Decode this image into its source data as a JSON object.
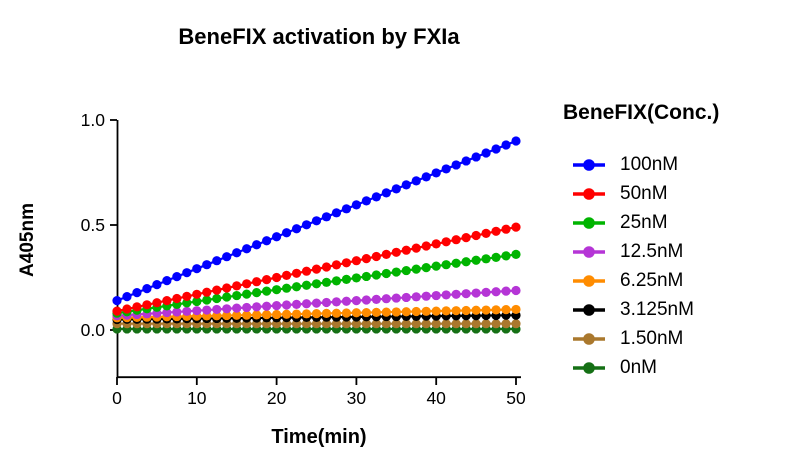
{
  "chart_data": {
    "type": "line",
    "title": "BeneFIX activation by FXIa",
    "xlabel": "Time(min)",
    "ylabel": "A405nm",
    "legend_title": "BeneFIX(Conc.)",
    "legend_position": "right",
    "grid": false,
    "xlim": [
      0,
      50.6
    ],
    "ylim": [
      -0.22,
      1.0
    ],
    "x_ticks": [
      0,
      10,
      20,
      30,
      40,
      50
    ],
    "x_tick_labels": [
      "0",
      "10",
      "20",
      "30",
      "40",
      "50"
    ],
    "y_ticks": [
      0.0,
      0.5,
      1.0
    ],
    "y_tick_labels": [
      "0.0",
      "0.5",
      "1.0"
    ],
    "x": [
      0,
      1.25,
      2.5,
      3.75,
      5,
      6.25,
      7.5,
      8.75,
      10,
      11.25,
      12.5,
      13.75,
      15,
      16.25,
      17.5,
      18.75,
      20,
      21.25,
      22.5,
      23.75,
      25,
      26.25,
      27.5,
      28.75,
      30,
      31.25,
      32.5,
      33.75,
      35,
      36.25,
      37.5,
      38.75,
      40,
      41.25,
      42.5,
      43.75,
      45,
      46.25,
      47.5,
      48.75,
      50
    ],
    "series": [
      {
        "name": "100nM",
        "color": "#0000FF",
        "values": [
          0.14,
          0.159,
          0.178,
          0.197,
          0.216,
          0.235,
          0.254,
          0.273,
          0.292,
          0.311,
          0.33,
          0.349,
          0.368,
          0.387,
          0.406,
          0.425,
          0.444,
          0.463,
          0.482,
          0.501,
          0.52,
          0.539,
          0.558,
          0.577,
          0.596,
          0.615,
          0.634,
          0.653,
          0.672,
          0.691,
          0.71,
          0.729,
          0.748,
          0.767,
          0.786,
          0.805,
          0.824,
          0.843,
          0.862,
          0.881,
          0.9
        ]
      },
      {
        "name": "50nM",
        "color": "#FF0000",
        "values": [
          0.09,
          0.1,
          0.11,
          0.12,
          0.13,
          0.14,
          0.15,
          0.16,
          0.17,
          0.18,
          0.19,
          0.2,
          0.21,
          0.22,
          0.23,
          0.24,
          0.25,
          0.26,
          0.27,
          0.28,
          0.29,
          0.3,
          0.31,
          0.32,
          0.33,
          0.34,
          0.35,
          0.36,
          0.37,
          0.38,
          0.39,
          0.4,
          0.41,
          0.42,
          0.43,
          0.44,
          0.45,
          0.46,
          0.47,
          0.48,
          0.49
        ]
      },
      {
        "name": "25nM",
        "color": "#00B400",
        "values": [
          0.08,
          0.087,
          0.094,
          0.101,
          0.108,
          0.115,
          0.122,
          0.129,
          0.136,
          0.143,
          0.15,
          0.157,
          0.164,
          0.171,
          0.178,
          0.185,
          0.192,
          0.199,
          0.206,
          0.213,
          0.22,
          0.227,
          0.234,
          0.241,
          0.248,
          0.255,
          0.262,
          0.269,
          0.276,
          0.283,
          0.29,
          0.297,
          0.304,
          0.311,
          0.318,
          0.325,
          0.332,
          0.339,
          0.346,
          0.353,
          0.36
        ]
      },
      {
        "name": "12.5nM",
        "color": "#B535D6",
        "values": [
          0.068,
          0.071,
          0.074,
          0.077,
          0.08,
          0.083,
          0.086,
          0.089,
          0.092,
          0.095,
          0.098,
          0.101,
          0.104,
          0.107,
          0.11,
          0.113,
          0.116,
          0.119,
          0.122,
          0.125,
          0.128,
          0.131,
          0.134,
          0.137,
          0.14,
          0.143,
          0.146,
          0.149,
          0.152,
          0.155,
          0.158,
          0.161,
          0.164,
          0.167,
          0.17,
          0.173,
          0.176,
          0.179,
          0.182,
          0.185,
          0.188
        ]
      },
      {
        "name": "6.25nM",
        "color": "#FF8C00",
        "values": [
          0.058,
          0.059,
          0.06,
          0.061,
          0.062,
          0.063,
          0.064,
          0.065,
          0.066,
          0.067,
          0.068,
          0.069,
          0.07,
          0.071,
          0.072,
          0.073,
          0.074,
          0.075,
          0.076,
          0.077,
          0.078,
          0.079,
          0.08,
          0.081,
          0.082,
          0.083,
          0.084,
          0.085,
          0.086,
          0.087,
          0.088,
          0.089,
          0.09,
          0.091,
          0.092,
          0.093,
          0.094,
          0.095,
          0.096,
          0.097,
          0.098
        ]
      },
      {
        "name": "3.125nM",
        "color": "#000000",
        "values": [
          0.05,
          0.051,
          0.051,
          0.052,
          0.052,
          0.053,
          0.053,
          0.054,
          0.054,
          0.055,
          0.055,
          0.056,
          0.056,
          0.057,
          0.057,
          0.058,
          0.058,
          0.059,
          0.059,
          0.06,
          0.06,
          0.061,
          0.061,
          0.062,
          0.062,
          0.063,
          0.063,
          0.064,
          0.064,
          0.065,
          0.065,
          0.066,
          0.066,
          0.067,
          0.067,
          0.068,
          0.068,
          0.069,
          0.069,
          0.07,
          0.07
        ]
      },
      {
        "name": "1.50nM",
        "color": "#AA782D",
        "values": [
          0.03,
          0.03,
          0.03,
          0.03,
          0.03,
          0.03,
          0.03,
          0.03,
          0.03,
          0.03,
          0.03,
          0.03,
          0.03,
          0.03,
          0.03,
          0.03,
          0.03,
          0.03,
          0.03,
          0.03,
          0.03,
          0.03,
          0.03,
          0.03,
          0.03,
          0.03,
          0.03,
          0.03,
          0.03,
          0.03,
          0.03,
          0.03,
          0.03,
          0.03,
          0.03,
          0.03,
          0.03,
          0.03,
          0.03,
          0.03,
          0.03
        ]
      },
      {
        "name": "0nM",
        "color": "#157015",
        "values": [
          0.005,
          0.005,
          0.005,
          0.005,
          0.005,
          0.005,
          0.005,
          0.005,
          0.005,
          0.005,
          0.005,
          0.005,
          0.005,
          0.005,
          0.005,
          0.005,
          0.005,
          0.005,
          0.005,
          0.005,
          0.005,
          0.005,
          0.005,
          0.005,
          0.005,
          0.005,
          0.005,
          0.005,
          0.005,
          0.005,
          0.005,
          0.005,
          0.005,
          0.005,
          0.005,
          0.005,
          0.005,
          0.005,
          0.005,
          0.005,
          0.005
        ]
      }
    ]
  }
}
